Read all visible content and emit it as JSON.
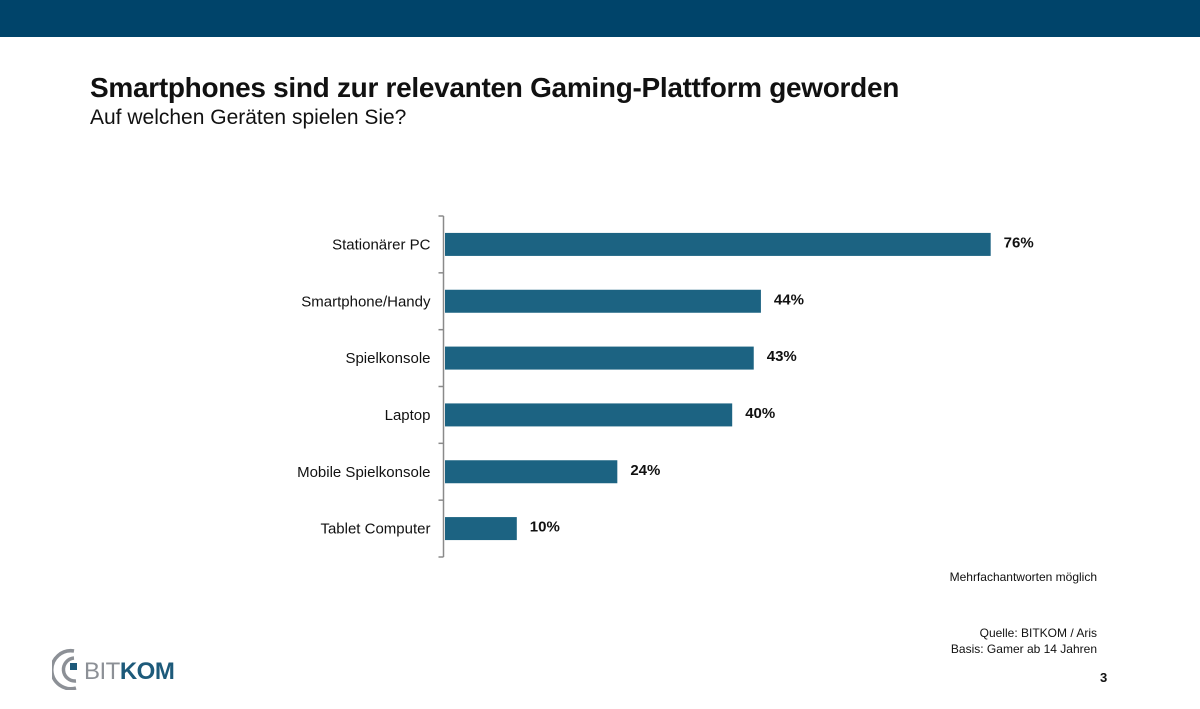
{
  "colors": {
    "header_bar": "#00446a",
    "bar": "#1c6382",
    "axis": "#8a8a8a",
    "logo_grey": "#8c9096",
    "logo_blue": "#1d5a7a"
  },
  "header": {
    "title": "Smartphones sind zur relevanten Gaming-Plattform geworden",
    "subtitle": "Auf welchen Geräten spielen Sie?"
  },
  "chart_data": {
    "type": "bar",
    "orientation": "horizontal",
    "title": "Smartphones sind zur relevanten Gaming-Plattform geworden",
    "subtitle": "Auf welchen Geräten spielen Sie?",
    "xlabel": "",
    "ylabel": "",
    "unit": "%",
    "xlim": [
      0,
      76
    ],
    "grid": false,
    "legend": "none",
    "categories": [
      "Stationärer PC",
      "Smartphone/Handy",
      "Spielkonsole",
      "Laptop",
      "Mobile Spielkonsole",
      "Tablet Computer"
    ],
    "values": [
      76,
      44,
      43,
      40,
      24,
      10
    ],
    "value_labels": [
      "76%",
      "44%",
      "43%",
      "40%",
      "24%",
      "10%"
    ]
  },
  "footer": {
    "note": "Mehrfachantworten möglich",
    "source": "Quelle: BITKOM / Aris",
    "basis": "Basis: Gamer ab 14 Jahren",
    "page_number": "3"
  },
  "logo": {
    "part1": "BIT",
    "part2": "KOM"
  }
}
